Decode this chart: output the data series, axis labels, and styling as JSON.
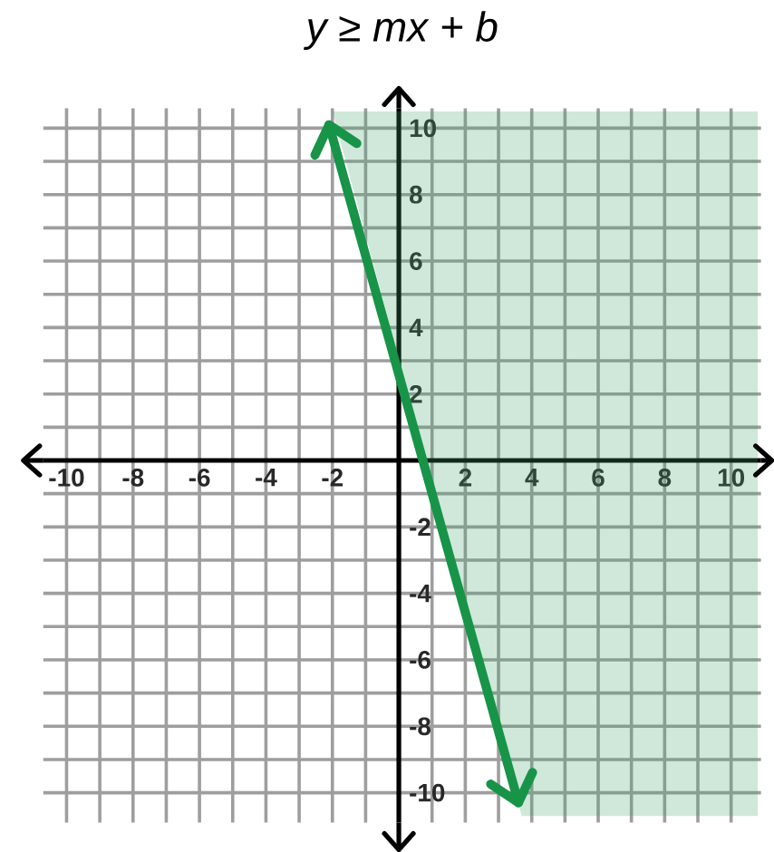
{
  "chart_data": {
    "type": "line",
    "title": "y ≥ mx + b",
    "xlim": [
      -10.7,
      10.9
    ],
    "ylim": [
      -10.9,
      10.6
    ],
    "xticks": [
      -10,
      {
        "value": -9,
        "label": null
      },
      -8,
      {
        "value": -7,
        "label": null
      },
      -6,
      {
        "value": -5,
        "label": null
      },
      -4,
      {
        "value": -3,
        "label": null
      },
      -2,
      {
        "value": -1,
        "label": null
      },
      {
        "value": 0,
        "label": null
      },
      {
        "value": 1,
        "label": null
      },
      2,
      {
        "value": 3,
        "label": null
      },
      4,
      {
        "value": 5,
        "label": null
      },
      6,
      {
        "value": 7,
        "label": null
      },
      8,
      {
        "value": 9,
        "label": null
      },
      10
    ],
    "yticks": [
      -10,
      {
        "value": -9,
        "label": null
      },
      -8,
      {
        "value": -7,
        "label": null
      },
      -6,
      {
        "value": -5,
        "label": null
      },
      -4,
      {
        "value": -3,
        "label": null
      },
      -2,
      {
        "value": -1,
        "label": null
      },
      {
        "value": 0,
        "label": null
      },
      {
        "value": 1,
        "label": null
      },
      2,
      {
        "value": 3,
        "label": null
      },
      4,
      {
        "value": 5,
        "label": null
      },
      6,
      {
        "value": 7,
        "label": null
      },
      8,
      {
        "value": 9,
        "label": null
      },
      10
    ],
    "grid": true,
    "series": [
      {
        "type": "area",
        "x": [
          -2.0,
          3.7,
          10.8,
          10.8
        ],
        "values": [
          10.5,
          -10.7,
          -10.7,
          10.5
        ],
        "color": "#cfe8da"
      },
      {
        "x": [
          -2.1,
          3.6
        ],
        "values": [
          10.1,
          -10.3
        ],
        "color": "#179447"
      }
    ]
  }
}
